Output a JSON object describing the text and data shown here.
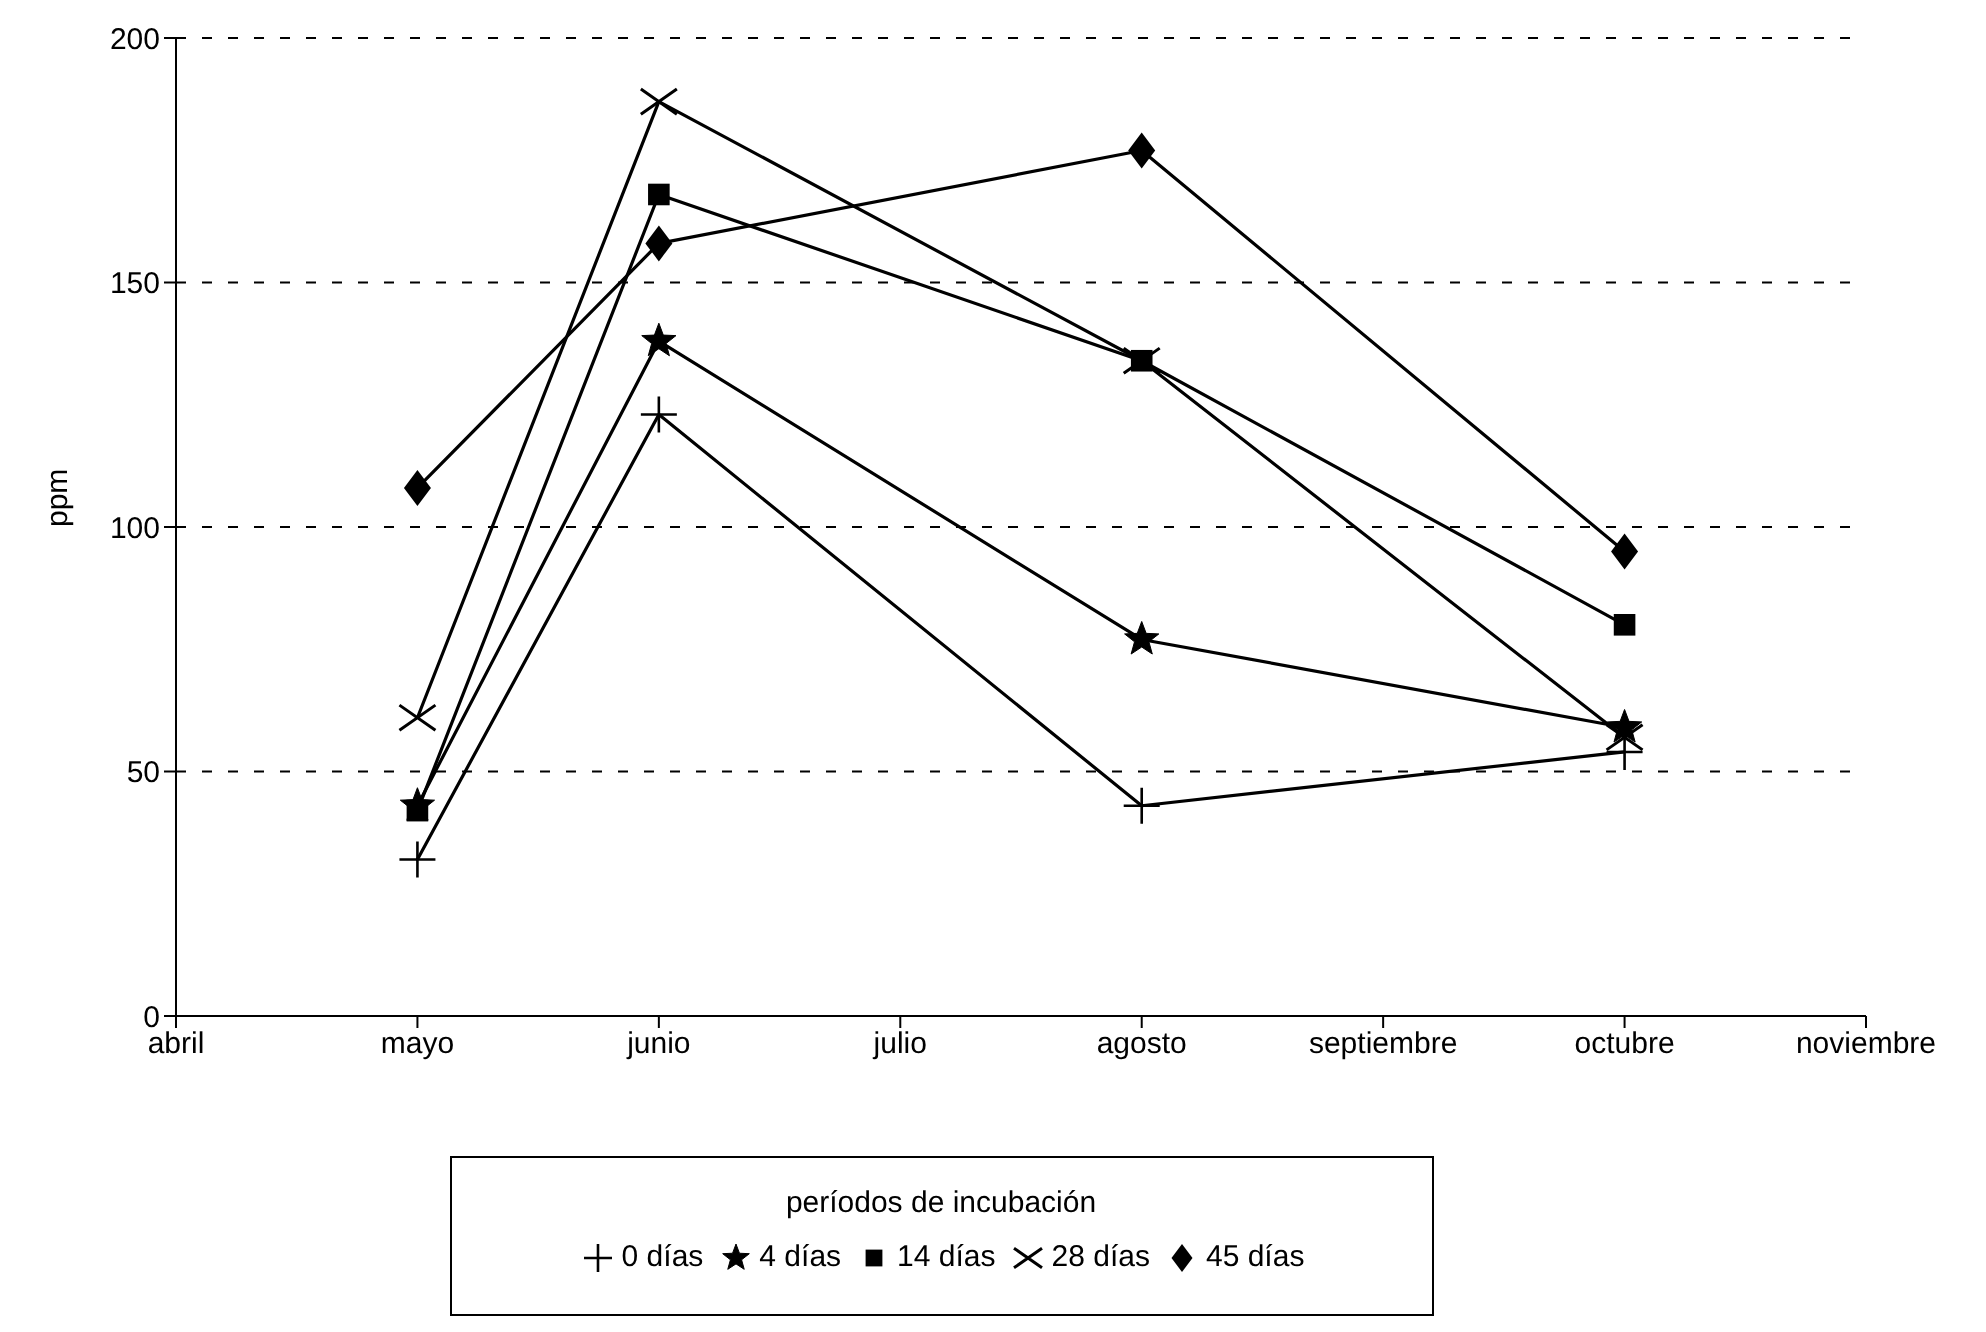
{
  "chart_data": {
    "type": "line",
    "ylabel": "ppm",
    "legend_title": "períodos de incubación",
    "categories": [
      "abril",
      "mayo",
      "junio",
      "julio",
      "agosto",
      "septiembre",
      "octubre",
      "noviembre"
    ],
    "series": [
      {
        "name": "0 días",
        "color": "#000000",
        "marker": "plus",
        "values": [
          null,
          32,
          123,
          null,
          43,
          null,
          54,
          null
        ]
      },
      {
        "name": "4 días",
        "color": "#000000",
        "marker": "star",
        "values": [
          null,
          43,
          138,
          null,
          77,
          null,
          59,
          null
        ]
      },
      {
        "name": "14 días",
        "color": "#000000",
        "marker": "square",
        "values": [
          null,
          42,
          168,
          null,
          134,
          null,
          80,
          null
        ]
      },
      {
        "name": "28 días",
        "color": "#000000",
        "marker": "cross",
        "values": [
          null,
          61,
          187,
          null,
          134,
          null,
          57,
          null
        ]
      },
      {
        "name": "45 días",
        "color": "#000000",
        "marker": "diamond",
        "values": [
          null,
          108,
          158,
          null,
          177,
          null,
          95,
          null
        ]
      }
    ],
    "ylim": [
      0,
      200
    ],
    "yticks": [
      0,
      50,
      100,
      150,
      200
    ],
    "grid": "y",
    "legend": "bottom",
    "line_style": "solid"
  }
}
